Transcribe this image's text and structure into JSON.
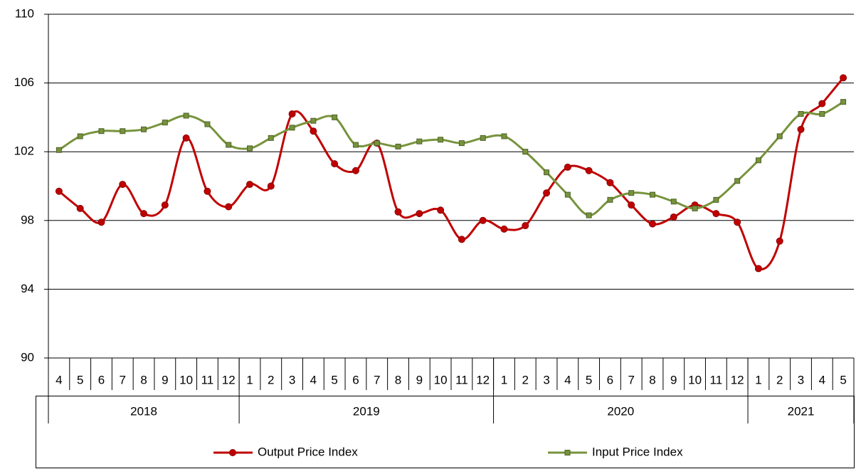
{
  "chart_data": {
    "type": "line",
    "categories": [
      "4",
      "5",
      "6",
      "7",
      "8",
      "9",
      "10",
      "11",
      "12",
      "1",
      "2",
      "3",
      "4",
      "5",
      "6",
      "7",
      "8",
      "9",
      "10",
      "11",
      "12",
      "1",
      "2",
      "3",
      "4",
      "5",
      "6",
      "7",
      "8",
      "9",
      "10",
      "11",
      "12",
      "1",
      "2",
      "3",
      "4",
      "5"
    ],
    "years": [
      "2018",
      "2019",
      "2020",
      "2021"
    ],
    "series": [
      {
        "name": "Output Price Index",
        "color": "#c00000",
        "values": [
          99.7,
          98.7,
          97.9,
          100.1,
          98.4,
          98.9,
          102.8,
          99.7,
          98.8,
          100.1,
          100.0,
          104.2,
          103.2,
          101.3,
          100.9,
          102.5,
          98.5,
          98.4,
          98.6,
          96.9,
          98.0,
          97.5,
          97.7,
          99.6,
          101.1,
          100.9,
          100.2,
          98.9,
          97.8,
          98.2,
          98.9,
          98.4,
          97.9,
          95.2,
          96.8,
          103.3,
          104.8,
          106.3
        ]
      },
      {
        "name": "Input Price Index",
        "color": "#77933c",
        "values": [
          102.1,
          102.9,
          103.2,
          103.2,
          103.3,
          103.7,
          104.1,
          103.6,
          102.4,
          102.2,
          102.8,
          103.4,
          103.8,
          104.0,
          102.4,
          102.5,
          102.3,
          102.6,
          102.7,
          102.5,
          102.8,
          102.9,
          102.0,
          100.8,
          99.5,
          98.3,
          99.2,
          99.6,
          99.5,
          99.1,
          98.7,
          99.2,
          100.3,
          101.5,
          102.9,
          104.2,
          104.2,
          104.9
        ]
      }
    ],
    "ylim": [
      90,
      110
    ],
    "yticks": [
      90,
      94,
      98,
      102,
      106,
      110
    ],
    "grid": true,
    "legend": "bottom"
  }
}
